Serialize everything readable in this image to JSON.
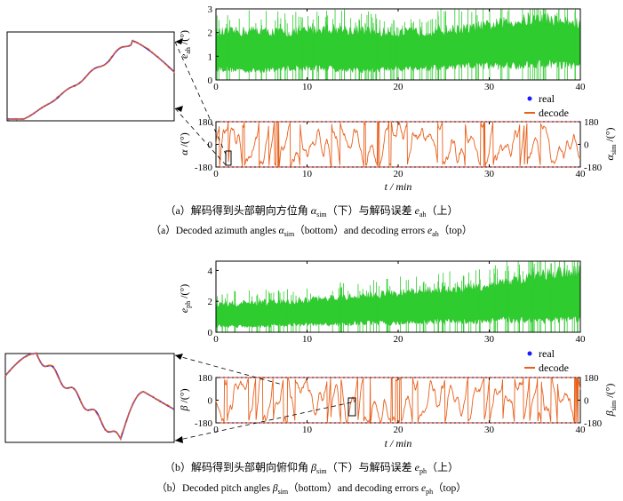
{
  "captions": {
    "a_cn_pre": "（a）解码得到头部朝向方位角 ",
    "a_cn_sym": "α",
    "a_cn_sub": "sim",
    "a_cn_mid": "（下）与解码误差 ",
    "a_cn_sym2": "e",
    "a_cn_sub2": "ah",
    "a_cn_post": "（上）",
    "a_en_pre": "（a）Decoded azimuth angles ",
    "a_en_sym": "α",
    "a_en_sub": "sim",
    "a_en_mid": "（bottom）and decoding errors ",
    "a_en_sym2": "e",
    "a_en_sub2": "ah",
    "a_en_post": "（top）",
    "b_cn_pre": "（b）解码得到头部朝向俯仰角 ",
    "b_cn_sym": "β",
    "b_cn_sub": "sim",
    "b_cn_mid": "（下）与解码误差 ",
    "b_cn_sym2": "e",
    "b_cn_sub2": "ph",
    "b_cn_post": "（上）",
    "b_en_pre": "（b）Decoded pitch angles ",
    "b_en_sym": "β",
    "b_en_sub": "sim",
    "b_en_mid": "（bottom）and decoding errors ",
    "b_en_sym2": "e",
    "b_en_sub2": "ph",
    "b_en_post": "（top）"
  },
  "colors": {
    "error": "#2ecc2e",
    "decode": "#e8601c",
    "real": "#1a1aff",
    "zoom_red": "#e03030"
  },
  "chart_data": [
    {
      "id": "a-top",
      "type": "area",
      "xlabel": "",
      "ylabel_sym": "e",
      "ylabel_sub": "ah",
      "ylabel_unit": "/(°)",
      "xlim": [
        0,
        40
      ],
      "ylim": [
        0,
        3
      ],
      "xticks": [
        "0",
        "10",
        "20",
        "30",
        "40"
      ],
      "yticks": [
        "0",
        "1",
        "2",
        "3"
      ],
      "series": [
        {
          "x": [
            0,
            4,
            8,
            12,
            16,
            20,
            24,
            28,
            32,
            36,
            40
          ],
          "max": [
            2.2,
            2.3,
            2.2,
            2.4,
            2.3,
            2.2,
            2.3,
            2.4,
            2.7,
            2.9,
            2.6
          ],
          "min": [
            0.5,
            0.4,
            0.5,
            0.5,
            0.4,
            0.5,
            0.5,
            0.6,
            0.6,
            0.7,
            0.6
          ]
        }
      ]
    },
    {
      "id": "a-bottom",
      "type": "line",
      "xlabel": "t / min",
      "ylabel_sym": "α",
      "ylabel_unit": "/(°)",
      "ylabel_right_sym": "α",
      "ylabel_right_sub": "sim",
      "ylabel_right_unit": "/(°)",
      "xlim": [
        0,
        40
      ],
      "ylim": [
        -180,
        180
      ],
      "xticks": [
        "0",
        "10",
        "20",
        "30",
        "40"
      ],
      "yticks": [
        "-180",
        "0",
        "180"
      ],
      "legend": [
        "real",
        "decode"
      ]
    },
    {
      "id": "b-top",
      "type": "area",
      "xlabel": "",
      "ylabel_sym": "e",
      "ylabel_sub": "ph",
      "ylabel_unit": "/(°)",
      "xlim": [
        0,
        40
      ],
      "ylim": [
        0,
        4.6
      ],
      "xticks": [
        "0",
        "10",
        "20",
        "30",
        "40"
      ],
      "yticks": [
        "0",
        "2",
        "4"
      ],
      "series": [
        {
          "x": [
            0,
            4,
            8,
            12,
            16,
            20,
            24,
            28,
            32,
            36,
            40
          ],
          "max": [
            2.0,
            2.1,
            2.2,
            2.4,
            2.6,
            2.8,
            3.0,
            3.2,
            3.6,
            4.2,
            4.4
          ],
          "min": [
            0.4,
            0.4,
            0.5,
            0.5,
            0.6,
            0.6,
            0.7,
            0.7,
            0.8,
            0.8,
            0.8
          ]
        }
      ]
    },
    {
      "id": "b-bottom",
      "type": "line",
      "xlabel": "t / min",
      "ylabel_sym": "β",
      "ylabel_unit": "/(°)",
      "ylabel_right_sym": "β",
      "ylabel_right_sub": "sim",
      "ylabel_right_unit": "/(°)",
      "xlim": [
        0,
        40
      ],
      "ylim": [
        -180,
        180
      ],
      "xticks": [
        "0",
        "10",
        "20",
        "30",
        "40"
      ],
      "yticks": [
        "-180",
        "0",
        "180"
      ],
      "legend": [
        "real",
        "decode"
      ]
    }
  ]
}
